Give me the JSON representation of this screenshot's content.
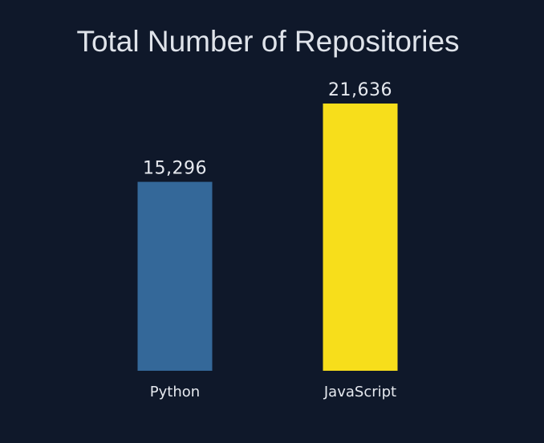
{
  "page": {
    "background": "#0f182a",
    "text_color": "#e6e9ef"
  },
  "chart_data": {
    "type": "bar",
    "title": "Total Number of Repositories",
    "categories": [
      "Python",
      "JavaScript"
    ],
    "values": [
      15296,
      21636
    ],
    "value_labels": [
      "15,296",
      "21,636"
    ],
    "bar_colors": [
      "#346899",
      "#f7de1b"
    ],
    "xlabel": "",
    "ylabel": "",
    "ylim": [
      0,
      21636
    ],
    "grid": false,
    "legend": "none"
  }
}
